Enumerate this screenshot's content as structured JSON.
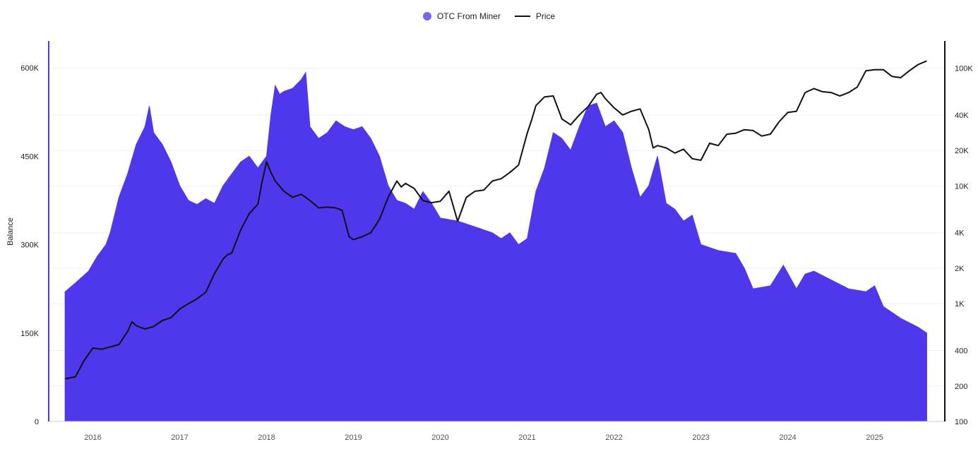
{
  "legend": {
    "items": [
      {
        "label": "OTC From Miner",
        "color": "#5b3ff0"
      },
      {
        "label": "Price",
        "color": "#111111"
      }
    ]
  },
  "chart_data": {
    "type": "area",
    "x_tick_labels": [
      "2016",
      "2017",
      "2018",
      "2019",
      "2020",
      "2021",
      "2022",
      "2023",
      "2024",
      "2025"
    ],
    "left_axis": {
      "label": "Balance",
      "ticks": [
        0,
        150000,
        300000,
        450000,
        600000
      ],
      "tick_labels": [
        "0",
        "150K",
        "300K",
        "450K",
        "600K"
      ],
      "range": [
        0,
        600000
      ]
    },
    "right_axis": {
      "scale": "log",
      "ticks": [
        100,
        200,
        400,
        1000,
        2000,
        4000,
        10000,
        20000,
        40000,
        100000
      ],
      "tick_labels": [
        "100",
        "200",
        "400",
        "1K",
        "2K",
        "4K",
        "10K",
        "20K",
        "40K",
        "100K"
      ],
      "range": [
        100,
        170000
      ]
    },
    "series": [
      {
        "name": "OTC From Miner",
        "type": "area",
        "axis": "left",
        "color": "#4f38ec",
        "x": [
          2015.68,
          2015.8,
          2015.95,
          2016.05,
          2016.15,
          2016.2,
          2016.3,
          2016.4,
          2016.5,
          2016.6,
          2016.65,
          2016.7,
          2016.8,
          2016.9,
          2017.0,
          2017.1,
          2017.2,
          2017.3,
          2017.4,
          2017.5,
          2017.6,
          2017.7,
          2017.8,
          2017.9,
          2018.0,
          2018.05,
          2018.1,
          2018.15,
          2018.2,
          2018.3,
          2018.4,
          2018.45,
          2018.5,
          2018.6,
          2018.7,
          2018.8,
          2018.9,
          2019.0,
          2019.1,
          2019.2,
          2019.3,
          2019.4,
          2019.5,
          2019.6,
          2019.7,
          2019.8,
          2019.9,
          2020.0,
          2020.2,
          2020.4,
          2020.6,
          2020.7,
          2020.8,
          2020.9,
          2021.0,
          2021.1,
          2021.2,
          2021.3,
          2021.4,
          2021.5,
          2021.6,
          2021.7,
          2021.8,
          2021.9,
          2022.0,
          2022.1,
          2022.2,
          2022.3,
          2022.4,
          2022.5,
          2022.6,
          2022.7,
          2022.8,
          2022.9,
          2023.0,
          2023.2,
          2023.4,
          2023.5,
          2023.6,
          2023.8,
          2023.95,
          2024.1,
          2024.2,
          2024.3,
          2024.5,
          2024.7,
          2024.9,
          2025.0,
          2025.1,
          2025.3,
          2025.5,
          2025.6
        ],
        "values": [
          220000,
          235000,
          255000,
          280000,
          300000,
          320000,
          380000,
          420000,
          470000,
          500000,
          535000,
          490000,
          470000,
          440000,
          400000,
          375000,
          368000,
          378000,
          370000,
          400000,
          420000,
          440000,
          450000,
          430000,
          450000,
          520000,
          570000,
          555000,
          560000,
          565000,
          580000,
          592000,
          500000,
          480000,
          490000,
          510000,
          500000,
          495000,
          500000,
          480000,
          450000,
          400000,
          375000,
          370000,
          360000,
          390000,
          370000,
          345000,
          340000,
          330000,
          320000,
          310000,
          320000,
          300000,
          310000,
          390000,
          430000,
          490000,
          480000,
          460000,
          500000,
          535000,
          540000,
          500000,
          510000,
          490000,
          430000,
          380000,
          400000,
          450000,
          370000,
          360000,
          340000,
          350000,
          300000,
          290000,
          285000,
          260000,
          225000,
          230000,
          265000,
          225000,
          250000,
          255000,
          240000,
          225000,
          220000,
          230000,
          195000,
          175000,
          160000,
          150000
        ]
      },
      {
        "name": "Price",
        "type": "line",
        "axis": "right",
        "color": "#111111",
        "x": [
          2015.68,
          2015.8,
          2015.9,
          2016.0,
          2016.1,
          2016.2,
          2016.3,
          2016.4,
          2016.45,
          2016.5,
          2016.6,
          2016.7,
          2016.8,
          2016.9,
          2017.0,
          2017.1,
          2017.2,
          2017.3,
          2017.4,
          2017.5,
          2017.55,
          2017.6,
          2017.7,
          2017.8,
          2017.9,
          2017.95,
          2018.0,
          2018.05,
          2018.1,
          2018.2,
          2018.3,
          2018.4,
          2018.5,
          2018.6,
          2018.7,
          2018.8,
          2018.87,
          2018.95,
          2019.0,
          2019.1,
          2019.2,
          2019.3,
          2019.4,
          2019.5,
          2019.55,
          2019.6,
          2019.7,
          2019.8,
          2019.9,
          2020.0,
          2020.1,
          2020.2,
          2020.3,
          2020.4,
          2020.5,
          2020.6,
          2020.7,
          2020.8,
          2020.9,
          2021.0,
          2021.05,
          2021.1,
          2021.2,
          2021.3,
          2021.4,
          2021.5,
          2021.6,
          2021.7,
          2021.8,
          2021.85,
          2021.9,
          2022.0,
          2022.1,
          2022.2,
          2022.3,
          2022.4,
          2022.45,
          2022.5,
          2022.6,
          2022.7,
          2022.8,
          2022.9,
          2023.0,
          2023.1,
          2023.2,
          2023.3,
          2023.4,
          2023.5,
          2023.6,
          2023.7,
          2023.8,
          2023.9,
          2024.0,
          2024.1,
          2024.2,
          2024.3,
          2024.4,
          2024.5,
          2024.6,
          2024.7,
          2024.8,
          2024.9,
          2025.0,
          2025.1,
          2025.2,
          2025.3,
          2025.4,
          2025.5,
          2025.6
        ],
        "values": [
          230,
          240,
          330,
          420,
          410,
          430,
          450,
          580,
          700,
          650,
          610,
          640,
          720,
          760,
          900,
          1000,
          1100,
          1250,
          1800,
          2400,
          2600,
          2700,
          4200,
          5800,
          7000,
          11000,
          16000,
          13000,
          11000,
          9000,
          8000,
          8500,
          7500,
          6500,
          6600,
          6500,
          6200,
          3700,
          3500,
          3700,
          4000,
          5200,
          8000,
          11000,
          9800,
          10500,
          9500,
          7500,
          7200,
          7400,
          9000,
          5000,
          8000,
          9000,
          9200,
          11000,
          11500,
          13000,
          15000,
          28000,
          36000,
          48000,
          57000,
          58000,
          37000,
          33000,
          40000,
          47000,
          60000,
          62000,
          55000,
          46000,
          40000,
          43000,
          45000,
          30000,
          21000,
          22000,
          21000,
          19000,
          20500,
          17000,
          16500,
          23000,
          22000,
          27500,
          28000,
          30000,
          29500,
          26500,
          27500,
          35000,
          42000,
          43000,
          62000,
          67000,
          63000,
          62000,
          58000,
          62000,
          69000,
          95000,
          97000,
          97000,
          85000,
          83000,
          95000,
          107000,
          115000
        ]
      }
    ]
  }
}
